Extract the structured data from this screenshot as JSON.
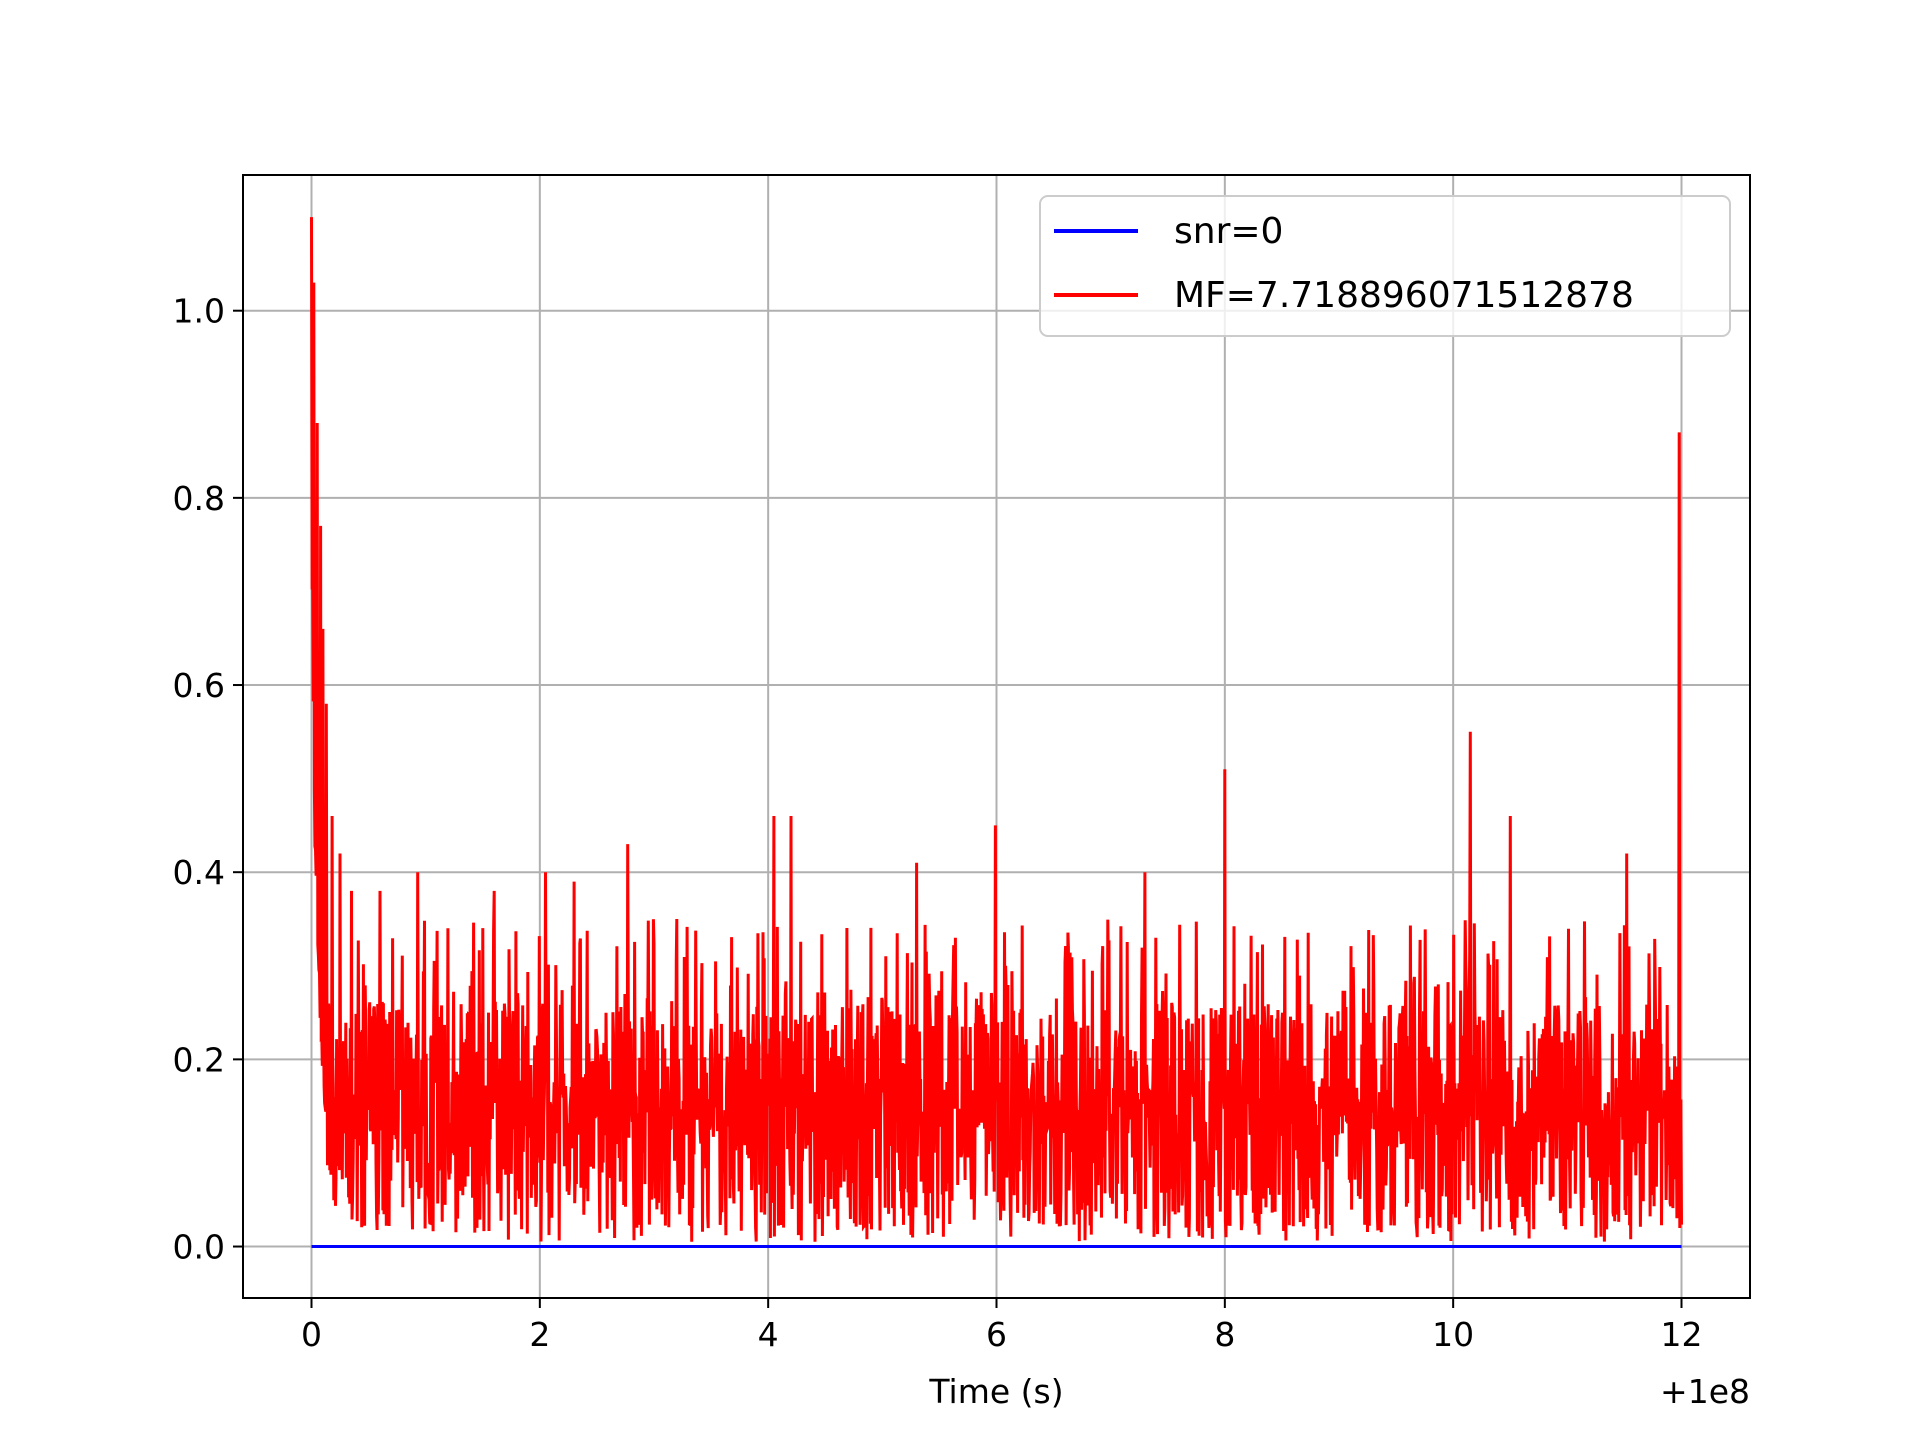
{
  "chart_data": {
    "type": "line",
    "title": "",
    "xlabel": "Time (s)",
    "ylabel": "",
    "x_offset_label": "+1e8",
    "xlim": [
      -0.6,
      12.6
    ],
    "ylim": [
      -0.055,
      1.145
    ],
    "x_ticks": [
      0,
      2,
      4,
      6,
      8,
      10,
      12
    ],
    "x_tick_labels": [
      "0",
      "2",
      "4",
      "6",
      "8",
      "10",
      "12"
    ],
    "y_ticks": [
      0.0,
      0.2,
      0.4,
      0.6,
      0.8,
      1.0
    ],
    "y_tick_labels": [
      "0.0",
      "0.2",
      "0.4",
      "0.6",
      "0.8",
      "1.0"
    ],
    "grid": true,
    "legend_position": "top-right",
    "series": [
      {
        "name": "snr=0",
        "color": "#0000ff",
        "x": [
          0,
          12
        ],
        "values": [
          0,
          0
        ]
      },
      {
        "name": "MF=7.718896071512878",
        "color": "#ff0000",
        "peaks": {
          "x": [
            0.0,
            0.02,
            0.05,
            0.08,
            0.1,
            0.13,
            0.18,
            0.25,
            0.35,
            0.6,
            0.93,
            1.6,
            2.05,
            2.3,
            2.77,
            3.2,
            4.05,
            4.2,
            5.3,
            5.99,
            7.3,
            8.0,
            10.15,
            10.5,
            11.52,
            11.98
          ],
          "values": [
            1.1,
            1.03,
            0.88,
            0.77,
            0.66,
            0.58,
            0.46,
            0.42,
            0.38,
            0.38,
            0.4,
            0.38,
            0.4,
            0.39,
            0.43,
            0.35,
            0.46,
            0.46,
            0.41,
            0.45,
            0.4,
            0.51,
            0.55,
            0.46,
            0.42,
            0.87
          ]
        },
        "noise_floor": 0.005,
        "typical_range": [
          0.02,
          0.35
        ]
      }
    ]
  }
}
